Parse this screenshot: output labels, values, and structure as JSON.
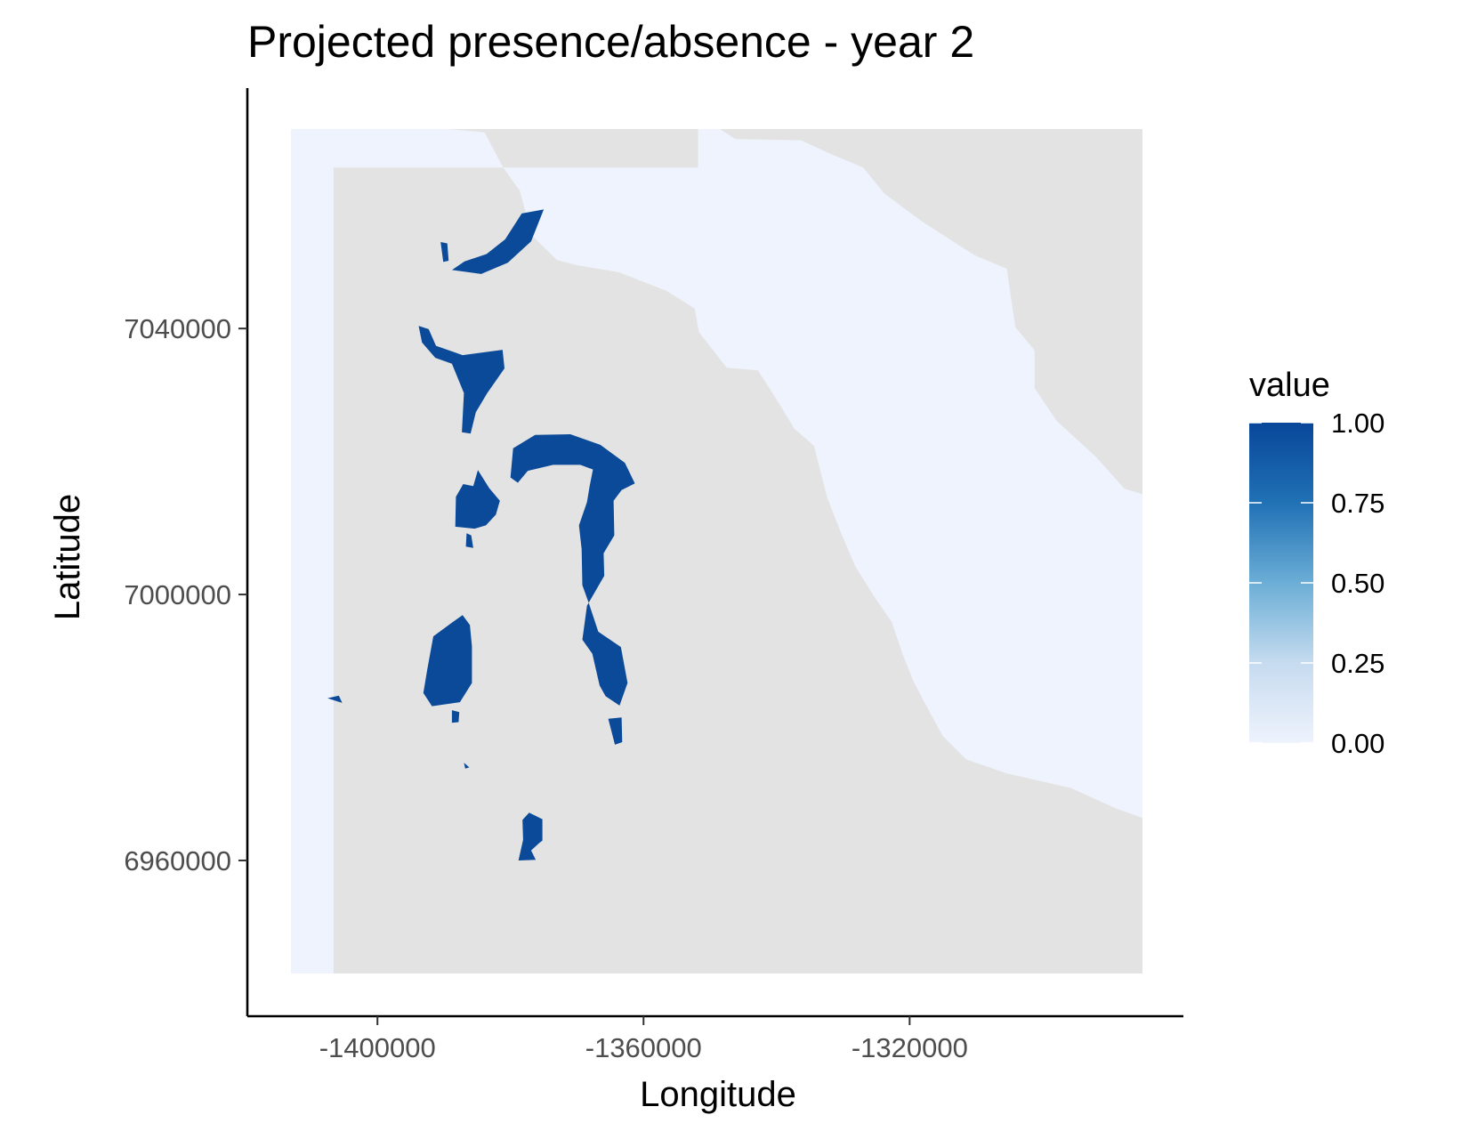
{
  "chart_data": {
    "type": "heatmap",
    "title": "Projected presence/absence - year 2",
    "xlabel": "Longitude",
    "ylabel": "Latitude",
    "xlim": [
      -1413000,
      -1285000
    ],
    "ylim": [
      6943000,
      7070000
    ],
    "x_ticks": [
      -1400000,
      -1360000,
      -1320000
    ],
    "x_tick_labels": [
      "-1400000",
      "-1360000",
      "-1320000"
    ],
    "y_ticks": [
      7040000,
      7000000,
      6960000
    ],
    "y_tick_labels": [
      "7040000",
      "7000000",
      "6960000"
    ],
    "grid": false,
    "legend": {
      "title": "value",
      "position": "right",
      "scale": "continuous",
      "range": [
        0,
        1
      ],
      "breaks": [
        1.0,
        0.75,
        0.5,
        0.25,
        0.0
      ],
      "break_labels": [
        "1.00",
        "0.75",
        "0.50",
        "0.25",
        "0.00"
      ],
      "low_color": "#eef3fd",
      "high_color": "#08479a"
    },
    "colors": {
      "na_fill": "#e3e3e3",
      "absent": "#eef3fd",
      "present": "#0b4a98"
    },
    "domain_outline": [
      [
        -1406600,
        7064200
      ],
      [
        -1351800,
        7064200
      ],
      [
        -1351800,
        7070000
      ],
      [
        -1348500,
        7070000
      ],
      [
        -1346200,
        7068500
      ],
      [
        -1336300,
        7068300
      ],
      [
        -1332200,
        7066400
      ],
      [
        -1327000,
        7064200
      ],
      [
        -1323800,
        7060300
      ],
      [
        -1318000,
        7056000
      ],
      [
        -1310200,
        7051000
      ],
      [
        -1305400,
        7049000
      ],
      [
        -1305000,
        7046200
      ],
      [
        -1304100,
        7040200
      ],
      [
        -1301200,
        7036700
      ],
      [
        -1301200,
        7031000
      ],
      [
        -1297900,
        7026100
      ],
      [
        -1292000,
        7020700
      ],
      [
        -1287700,
        7015900
      ],
      [
        -1285000,
        7015100
      ],
      [
        -1285000,
        6966400
      ],
      [
        -1288900,
        6967800
      ],
      [
        -1295800,
        6970900
      ],
      [
        -1305400,
        6973100
      ],
      [
        -1311500,
        6975200
      ],
      [
        -1315000,
        6978700
      ],
      [
        -1317300,
        6982900
      ],
      [
        -1319400,
        6986900
      ],
      [
        -1321000,
        6990900
      ],
      [
        -1322700,
        6995900
      ],
      [
        -1325400,
        6999800
      ],
      [
        -1328200,
        7004300
      ],
      [
        -1330300,
        7009200
      ],
      [
        -1332400,
        7014600
      ],
      [
        -1334400,
        7022400
      ],
      [
        -1337300,
        7024900
      ],
      [
        -1340300,
        7029800
      ],
      [
        -1342800,
        7033700
      ],
      [
        -1347500,
        7034100
      ],
      [
        -1351700,
        7039500
      ],
      [
        -1352300,
        7043000
      ],
      [
        -1356600,
        7045700
      ],
      [
        -1363800,
        7048500
      ],
      [
        -1369900,
        7049500
      ],
      [
        -1373000,
        7050300
      ],
      [
        -1376800,
        7054000
      ],
      [
        -1378600,
        7060700
      ],
      [
        -1381100,
        7064200
      ],
      [
        -1383900,
        7069500
      ],
      [
        -1386900,
        7069800
      ],
      [
        -1389600,
        7070000
      ],
      [
        -1413000,
        7070000
      ],
      [
        -1413000,
        6943000
      ],
      [
        -1406600,
        6943000
      ],
      [
        -1406600,
        7064200
      ]
    ],
    "present_patches": [
      [
        [
          -1378300,
          7057300
        ],
        [
          -1375000,
          7057900
        ],
        [
          -1376900,
          7053100
        ],
        [
          -1380400,
          7049900
        ],
        [
          -1384400,
          7048200
        ],
        [
          -1388800,
          7048800
        ],
        [
          -1386900,
          7050100
        ],
        [
          -1383600,
          7051200
        ],
        [
          -1380800,
          7053400
        ]
      ],
      [
        [
          -1390500,
          7053000
        ],
        [
          -1389500,
          7052800
        ],
        [
          -1389300,
          7050200
        ],
        [
          -1390100,
          7050000
        ]
      ],
      [
        [
          -1387200,
          7036000
        ],
        [
          -1381200,
          7036800
        ],
        [
          -1380900,
          7034000
        ],
        [
          -1383500,
          7030300
        ],
        [
          -1385200,
          7027400
        ],
        [
          -1386000,
          7024200
        ],
        [
          -1387300,
          7024400
        ],
        [
          -1387000,
          7030300
        ],
        [
          -1388800,
          7034700
        ],
        [
          -1391300,
          7035600
        ],
        [
          -1393300,
          7037900
        ],
        [
          -1393800,
          7040400
        ],
        [
          -1392300,
          7039900
        ],
        [
          -1391200,
          7037400
        ]
      ],
      [
        [
          -1379600,
          7022000
        ],
        [
          -1376300,
          7024000
        ],
        [
          -1371000,
          7024100
        ],
        [
          -1366500,
          7022500
        ],
        [
          -1362800,
          7019800
        ],
        [
          -1361300,
          7016700
        ],
        [
          -1363300,
          7015700
        ],
        [
          -1364500,
          7014100
        ],
        [
          -1364400,
          7008900
        ],
        [
          -1366000,
          7006200
        ],
        [
          -1365900,
          7002800
        ],
        [
          -1368500,
          6998300
        ],
        [
          -1369200,
          6993200
        ],
        [
          -1367700,
          6991100
        ],
        [
          -1366600,
          6986300
        ],
        [
          -1365700,
          6984700
        ],
        [
          -1363600,
          6983300
        ],
        [
          -1362400,
          6986700
        ],
        [
          -1363400,
          6992100
        ],
        [
          -1366800,
          6994400
        ],
        [
          -1368200,
          6998600
        ],
        [
          -1369200,
          7001400
        ],
        [
          -1369300,
          7006800
        ],
        [
          -1369700,
          7010400
        ],
        [
          -1368500,
          7013900
        ],
        [
          -1368100,
          7016300
        ],
        [
          -1367600,
          7018800
        ],
        [
          -1369500,
          7019500
        ],
        [
          -1373600,
          7019500
        ],
        [
          -1377400,
          7018600
        ],
        [
          -1378900,
          7016800
        ],
        [
          -1380000,
          7017600
        ]
      ],
      [
        [
          -1385600,
          7016300
        ],
        [
          -1387100,
          7016600
        ],
        [
          -1388200,
          7014700
        ],
        [
          -1388300,
          7010200
        ],
        [
          -1385400,
          7009900
        ],
        [
          -1383700,
          7010400
        ],
        [
          -1382200,
          7012000
        ],
        [
          -1381600,
          7014100
        ],
        [
          -1383200,
          7016000
        ],
        [
          -1384900,
          7018700
        ]
      ],
      [
        [
          -1385900,
          7008900
        ],
        [
          -1385600,
          7007000
        ],
        [
          -1386700,
          7007200
        ],
        [
          -1386600,
          7009200
        ]
      ],
      [
        [
          -1388900,
          6995700
        ],
        [
          -1391600,
          6993700
        ],
        [
          -1392500,
          6988800
        ],
        [
          -1393100,
          6985200
        ],
        [
          -1391800,
          6983200
        ],
        [
          -1387600,
          6983800
        ],
        [
          -1385800,
          6986700
        ],
        [
          -1385800,
          6992200
        ],
        [
          -1386100,
          6995400
        ],
        [
          -1387200,
          6996900
        ]
      ],
      [
        [
          -1388800,
          6982600
        ],
        [
          -1388800,
          6980700
        ],
        [
          -1387800,
          6980800
        ],
        [
          -1387700,
          6982300
        ]
      ],
      [
        [
          -1407500,
          6984400
        ],
        [
          -1405300,
          6983700
        ],
        [
          -1405800,
          6984800
        ]
      ],
      [
        [
          -1365300,
          6981300
        ],
        [
          -1363300,
          6981500
        ],
        [
          -1363200,
          6977800
        ],
        [
          -1364300,
          6977400
        ]
      ],
      [
        [
          -1387000,
          6974700
        ],
        [
          -1386800,
          6973800
        ],
        [
          -1386200,
          6974000
        ]
      ],
      [
        [
          -1377200,
          6967200
        ],
        [
          -1375200,
          6966200
        ],
        [
          -1375200,
          6963000
        ],
        [
          -1375700,
          6962600
        ],
        [
          -1376900,
          6961500
        ],
        [
          -1376200,
          6960100
        ],
        [
          -1378800,
          6960000
        ],
        [
          -1378100,
          6963100
        ],
        [
          -1378200,
          6966100
        ]
      ]
    ]
  }
}
